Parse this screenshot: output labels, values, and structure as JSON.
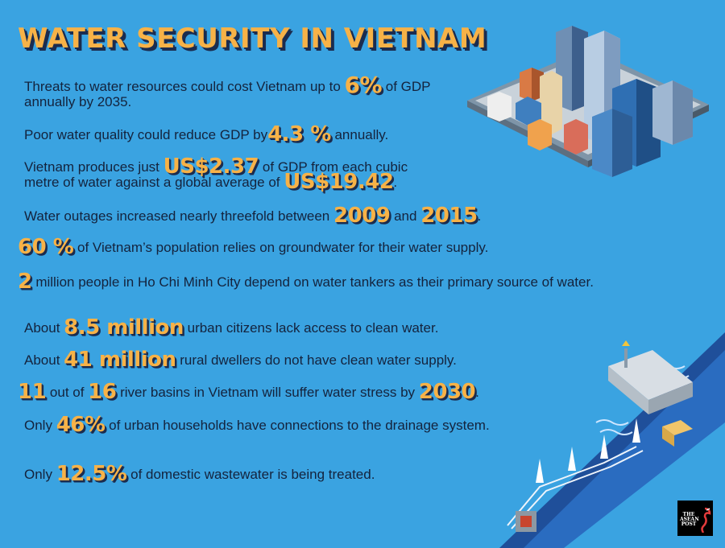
{
  "title": "WATER SECURITY IN VIETNAM",
  "facts": [
    {
      "a": "Threats to water resources could cost Vietnam up to ",
      "h1": "6%",
      "b": " of GDP annually by 2035."
    },
    {
      "a": "Poor water quality could reduce GDP by",
      "h1": "4.3 %",
      "b": " annually."
    },
    {
      "a": "Vietnam produces just ",
      "h1": "US$2.37",
      "b": " of GDP from each cubic metre of water against a global average of ",
      "h2": "US$19.42",
      "c": "."
    },
    {
      "a": "Water outages increased nearly threefold between ",
      "h1": "2009",
      "b": " and ",
      "h2": "2015",
      "c": "."
    },
    {
      "h1": "60 %",
      "b": " of Vietnam’s population relies on groundwater for their water supply."
    },
    {
      "h1": "2",
      "b": " million people in Ho Chi Minh City depend on water tankers as their primary source of water."
    },
    {
      "a": "About ",
      "h1": "8.5 million",
      "b": " urban citizens lack access to clean water."
    },
    {
      "a": "About ",
      "h1": "41 million",
      "b": " rural dwellers do not have clean water supply."
    },
    {
      "h1": "11",
      "b": " out of ",
      "h2": "16",
      "c": " river basins in Vietnam will suffer water stress by ",
      "h3": "2030",
      "d": "."
    },
    {
      "a": "Only ",
      "h1": "46%",
      "b": " of urban households have connections to the drainage system."
    },
    {
      "a": "Only ",
      "h1": "12.5%",
      "b": " of domestic wastewater is being treated."
    }
  ],
  "logo": {
    "text": "THE ASEAN POST"
  },
  "colors": {
    "background": "#3aa3e1",
    "highlight": "#f7b247",
    "text": "#14233d"
  },
  "icons": [
    "city-illustration",
    "dam-river-illustration",
    "power-lines-illustration",
    "asean-post-logo"
  ]
}
